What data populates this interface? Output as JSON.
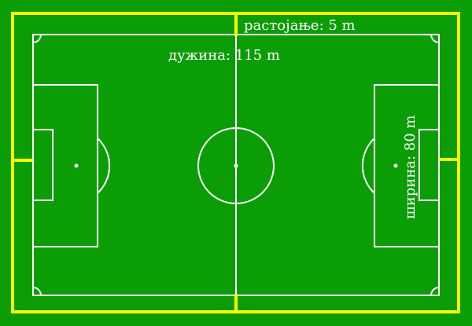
{
  "colors": {
    "grass": "#0b9d05",
    "lines": "#ffffff",
    "boundary": "#ffff00"
  },
  "labels": {
    "distance": "растојање: 5 m",
    "length": "дужина: 115 m",
    "width": "ширина: 80 m"
  }
}
